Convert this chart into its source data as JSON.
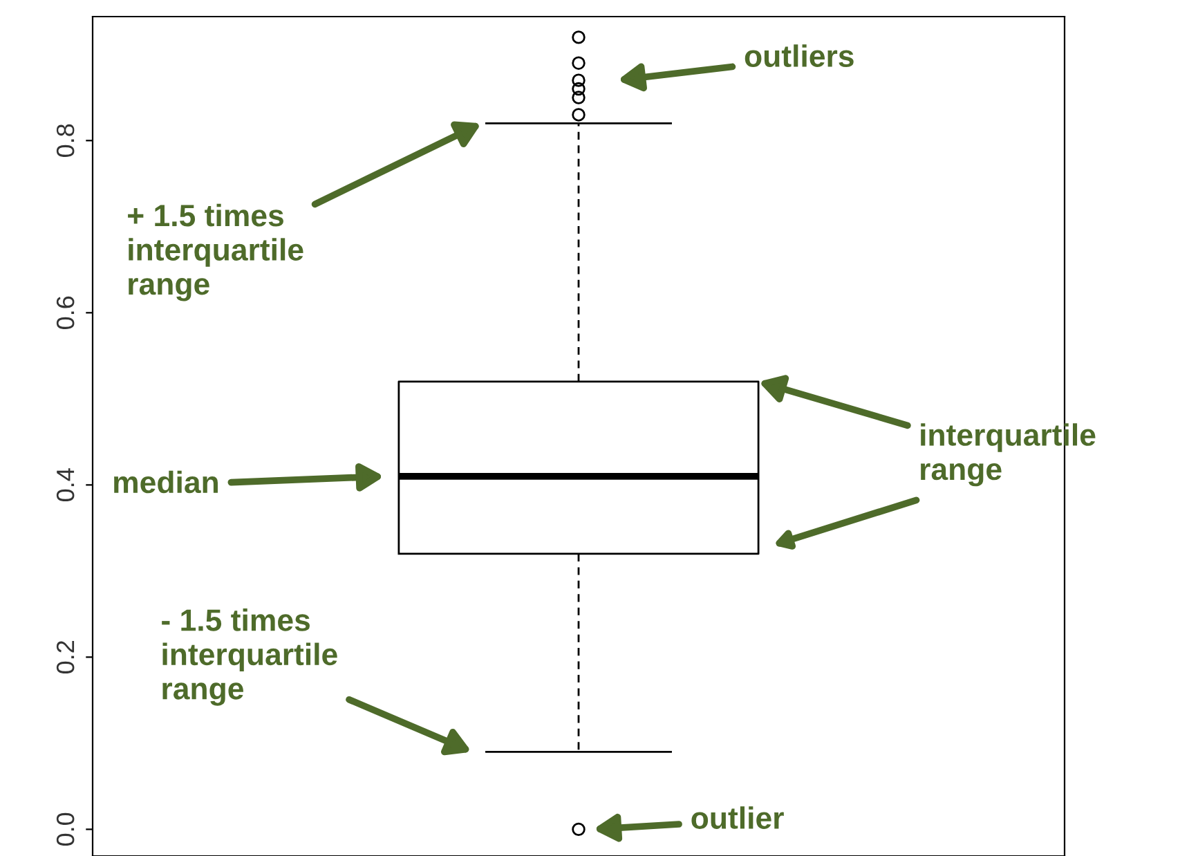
{
  "chart_data": {
    "type": "box",
    "categories": [
      null
    ],
    "boxes": [
      {
        "low": 0.09,
        "q1": 0.32,
        "median": 0.41,
        "q3": 0.52,
        "high": 0.82,
        "outliers": [
          0.0,
          0.83,
          0.85,
          0.86,
          0.87,
          0.89,
          0.92
        ]
      }
    ],
    "ylim": [
      -0.031,
      0.944
    ],
    "yticks": [
      {
        "value": 0.0,
        "label": "0.0"
      },
      {
        "value": 0.2,
        "label": "0.2"
      },
      {
        "value": 0.4,
        "label": "0.4"
      },
      {
        "value": 0.6,
        "label": "0.6"
      },
      {
        "value": 0.8,
        "label": "0.8"
      }
    ],
    "tick_labels": "y",
    "annotations": [
      "outliers",
      "+ 1.5 times\ninterquartile\nrange",
      "median",
      "interquartile\nrange",
      "- 1.5 times\ninterquartile\nrange",
      "outlier"
    ]
  }
}
